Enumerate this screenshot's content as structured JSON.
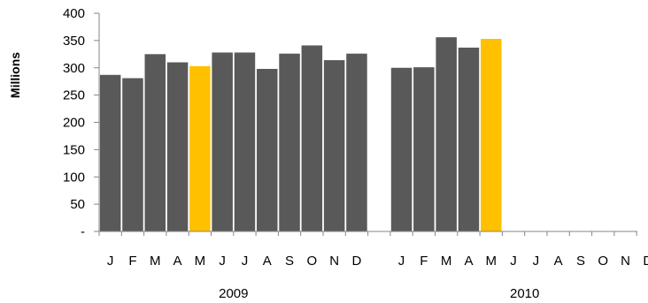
{
  "chart_data": {
    "type": "bar",
    "ylabel": "Millions",
    "ylim": [
      0,
      400
    ],
    "yticks": [
      0,
      50,
      100,
      150,
      200,
      250,
      300,
      350,
      400
    ],
    "ytick_labels": [
      "-",
      "50",
      "100",
      "150",
      "200",
      "250",
      "300",
      "350",
      "400"
    ],
    "colors": {
      "default": "#595959",
      "highlight": "#FFC000"
    },
    "groups": [
      {
        "year": "2009",
        "months": [
          "J",
          "F",
          "M",
          "A",
          "M",
          "J",
          "J",
          "A",
          "S",
          "O",
          "N",
          "D"
        ],
        "values": [
          287,
          281,
          325,
          310,
          303,
          328,
          328,
          298,
          326,
          341,
          314,
          326
        ],
        "highlight": [
          false,
          false,
          false,
          false,
          true,
          false,
          false,
          false,
          false,
          false,
          false,
          false
        ]
      },
      {
        "year": "2010",
        "months": [
          "J",
          "F",
          "M",
          "A",
          "M",
          "J",
          "J",
          "A",
          "S",
          "O",
          "N",
          "D"
        ],
        "values": [
          300,
          301,
          356,
          337,
          353,
          null,
          null,
          null,
          null,
          null,
          null,
          null
        ],
        "highlight": [
          false,
          false,
          false,
          false,
          true,
          false,
          false,
          false,
          false,
          false,
          false,
          false
        ]
      }
    ]
  }
}
